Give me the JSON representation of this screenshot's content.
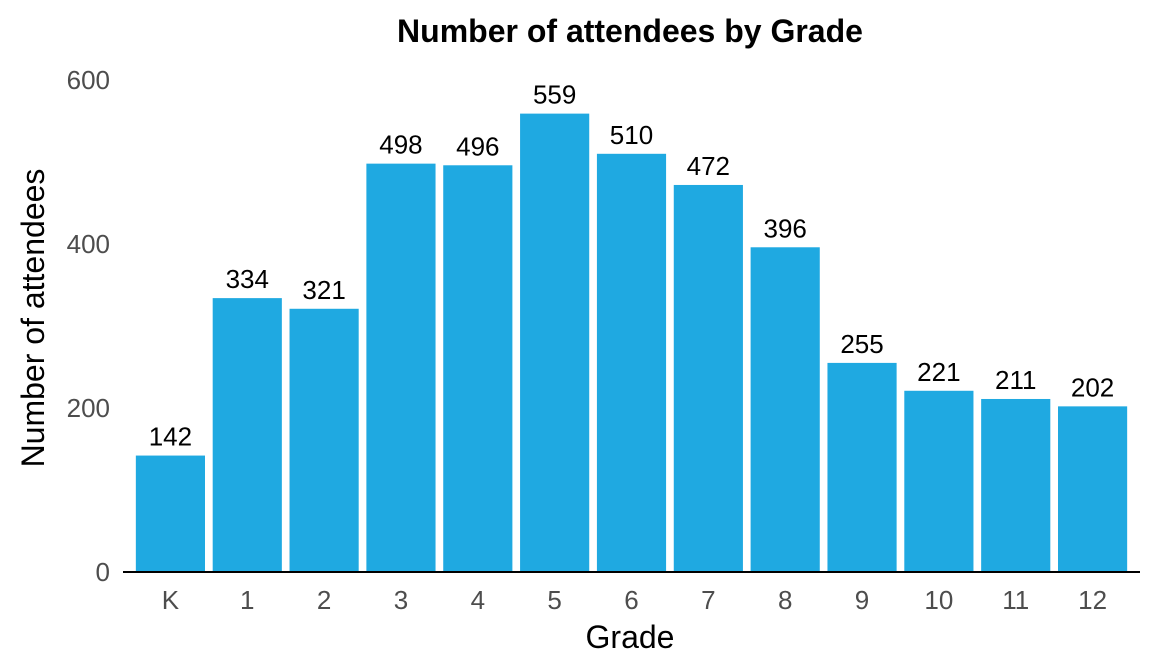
{
  "chart_data": {
    "type": "bar",
    "title": "Number of attendees by Grade",
    "xlabel": "Grade",
    "ylabel": "Number of attendees",
    "categories": [
      "K",
      "1",
      "2",
      "3",
      "4",
      "5",
      "6",
      "7",
      "8",
      "9",
      "10",
      "11",
      "12"
    ],
    "values": [
      142,
      334,
      321,
      498,
      496,
      559,
      510,
      472,
      396,
      255,
      221,
      211,
      202
    ],
    "ylim": [
      0,
      600
    ],
    "yticks": [
      "0",
      "200",
      "400",
      "600"
    ],
    "grid": false,
    "legend": "none",
    "colors": {
      "bar": "#1fa9e1",
      "axis": "#000000",
      "tick_text": "#4d4d4d"
    }
  }
}
